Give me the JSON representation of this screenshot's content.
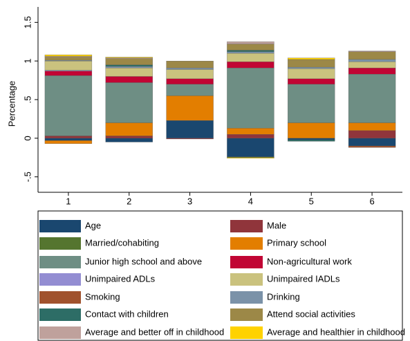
{
  "chart_data": {
    "type": "stacked_bar",
    "y_label": "Percentage",
    "categories": [
      "1",
      "2",
      "3",
      "4",
      "5",
      "6"
    ],
    "ylim": [
      -0.7,
      1.7
    ],
    "yticks": [
      {
        "value": -0.5,
        "label": "-.5"
      },
      0,
      {
        "value": 0.5,
        "label": ".5"
      },
      1,
      1.5
    ],
    "legend": "bottom",
    "series": [
      {
        "name": "Age",
        "color": "#1a476f",
        "values": [
          -0.03,
          -0.05,
          0.23,
          -0.24,
          -0.02,
          -0.1
        ]
      },
      {
        "name": "Male",
        "color": "#90353b",
        "values": [
          0.03,
          0.03,
          -0.01,
          0.05,
          0,
          0.1
        ]
      },
      {
        "name": "Married/cohabiting",
        "color": "#55752f",
        "values": [
          0,
          0,
          0,
          -0.01,
          0,
          0
        ]
      },
      {
        "name": "Primary school",
        "color": "#e37e00",
        "values": [
          -0.04,
          0.17,
          0.32,
          0.08,
          0.2,
          0.1
        ]
      },
      {
        "name": "Junior high school and above",
        "color": "#6e8e84",
        "values": [
          0.78,
          0.52,
          0.15,
          0.78,
          0.5,
          0.63
        ]
      },
      {
        "name": "Non-agricultural work",
        "color": "#c10534",
        "values": [
          0.06,
          0.08,
          0.07,
          0.08,
          0.07,
          0.08
        ]
      },
      {
        "name": "Unimpaired ADLs",
        "color": "#938dd2",
        "values": [
          0.01,
          0,
          0,
          0,
          0,
          0
        ]
      },
      {
        "name": "Unimpaired IADLs",
        "color": "#cac27e",
        "values": [
          0.12,
          0.11,
          0.12,
          0.11,
          0.13,
          0.08
        ]
      },
      {
        "name": "Smoking",
        "color": "#a0522d",
        "values": [
          0,
          0,
          0,
          0,
          0,
          -0.02
        ]
      },
      {
        "name": "Drinking",
        "color": "#7b92a8",
        "values": [
          0.01,
          0.02,
          0.02,
          0.02,
          0.02,
          0.03
        ]
      },
      {
        "name": "Contact with children",
        "color": "#2d6d66",
        "values": [
          0,
          0.02,
          0,
          0.02,
          -0.02,
          0
        ]
      },
      {
        "name": "Attend social activities",
        "color": "#9c8847",
        "values": [
          0.04,
          0.08,
          0.09,
          0.08,
          0.1,
          0.1
        ]
      },
      {
        "name": "Average and better off in childhood",
        "color": "#bfa19c",
        "values": [
          0.01,
          0.01,
          0,
          0.03,
          0,
          0.01
        ]
      },
      {
        "name": "Average and healthier in childhood",
        "color": "#ffd200",
        "values": [
          0.02,
          0.01,
          0,
          -0.01,
          0.02,
          0
        ]
      }
    ]
  }
}
